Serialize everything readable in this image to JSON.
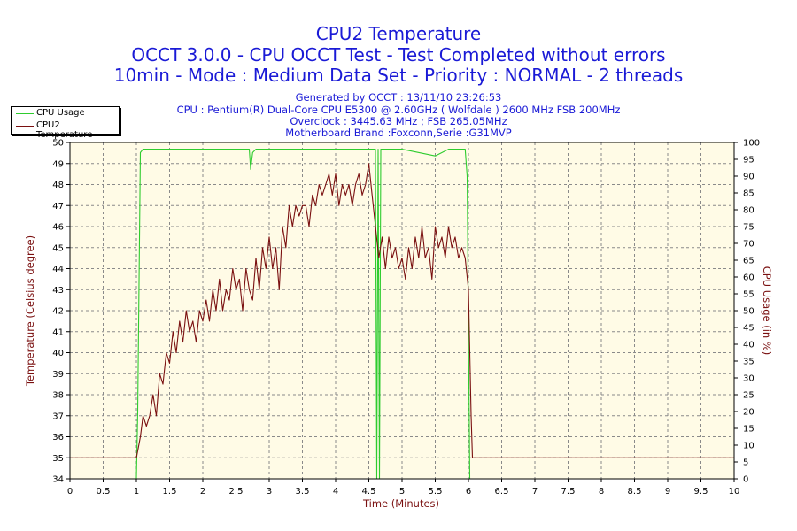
{
  "title": "CPU2 Temperature",
  "subtitle": "OCCT 3.0.0 - CPU OCCT Test - Test Completed without errors",
  "mode_line": "10min - Mode : Medium Data Set - Priority : NORMAL - 2 threads",
  "info": {
    "generated": "Generated by OCCT : 13/11/10 23:26:53",
    "cpu": "CPU : Pentium(R) Dual-Core CPU E5300 @ 2.60GHz ( Wolfdale ) 2600 MHz FSB 200MHz",
    "overclock": "Overclock : 3445.63 MHz ; FSB 265.05MHz",
    "motherboard": "Motherboard Brand :Foxconn,Serie :G31MVP"
  },
  "colors": {
    "title": "#1a1ad6",
    "cpu_usage": "#2ecc2e",
    "temperature": "#7a1010",
    "plot_bg": "#fffbe6",
    "axis_label": "#7a1010"
  },
  "chart_data": {
    "type": "line",
    "xlabel": "Time (Minutes)",
    "ylabel_left": "Temperature (Celsius degree)",
    "ylabel_right": "CPU Usage (in %)",
    "xlim": [
      0,
      10
    ],
    "ylim_left": [
      34,
      50
    ],
    "ylim_right": [
      0,
      100
    ],
    "x_ticks": [
      "0",
      "0.5",
      "1",
      "1.5",
      "2",
      "2.5",
      "3",
      "3.5",
      "4",
      "4.5",
      "5",
      "5.5",
      "6",
      "6.5",
      "7",
      "7.5",
      "8",
      "8.5",
      "9",
      "9.5",
      "10"
    ],
    "y_ticks_left": [
      "34",
      "35",
      "36",
      "37",
      "38",
      "39",
      "40",
      "41",
      "42",
      "43",
      "44",
      "45",
      "46",
      "47",
      "48",
      "49",
      "50"
    ],
    "y_ticks_right": [
      "0",
      "5",
      "10",
      "15",
      "20",
      "25",
      "30",
      "35",
      "40",
      "45",
      "50",
      "55",
      "60",
      "65",
      "70",
      "75",
      "80",
      "85",
      "90",
      "95",
      "100"
    ],
    "grid": true,
    "legend_position": "top-left",
    "series": [
      {
        "name": "CPU Usage",
        "axis": "right",
        "x": [
          0,
          1.0,
          1.02,
          1.06,
          1.1,
          1.3,
          1.6,
          2.0,
          2.4,
          2.7,
          2.72,
          2.75,
          2.8,
          3.2,
          3.6,
          4.0,
          4.4,
          4.6,
          4.62,
          4.64,
          4.66,
          4.68,
          4.7,
          4.72,
          5.0,
          5.5,
          5.7,
          5.95,
          5.98,
          6.02,
          6.05,
          10
        ],
        "y": [
          0,
          0,
          20,
          97,
          98,
          98,
          98,
          98,
          98,
          98,
          92,
          97,
          98,
          98,
          98,
          98,
          98,
          98,
          0,
          98,
          0,
          98,
          98,
          98,
          98,
          96,
          98,
          98,
          90,
          0,
          0,
          0
        ]
      },
      {
        "name": "CPU2 Temperature",
        "axis": "left",
        "x": [
          0,
          1.0,
          1.03,
          1.06,
          1.1,
          1.15,
          1.2,
          1.25,
          1.3,
          1.35,
          1.4,
          1.45,
          1.5,
          1.55,
          1.6,
          1.65,
          1.7,
          1.75,
          1.8,
          1.85,
          1.9,
          1.95,
          2.0,
          2.05,
          2.1,
          2.15,
          2.2,
          2.25,
          2.3,
          2.35,
          2.4,
          2.45,
          2.5,
          2.55,
          2.6,
          2.65,
          2.7,
          2.75,
          2.8,
          2.85,
          2.9,
          2.95,
          3.0,
          3.05,
          3.1,
          3.15,
          3.2,
          3.25,
          3.3,
          3.35,
          3.4,
          3.45,
          3.5,
          3.55,
          3.6,
          3.65,
          3.7,
          3.75,
          3.8,
          3.85,
          3.9,
          3.95,
          4.0,
          4.05,
          4.1,
          4.15,
          4.2,
          4.25,
          4.3,
          4.35,
          4.4,
          4.45,
          4.5,
          4.55,
          4.6,
          4.65,
          4.7,
          4.75,
          4.8,
          4.85,
          4.9,
          4.95,
          5.0,
          5.05,
          5.1,
          5.15,
          5.2,
          5.25,
          5.3,
          5.35,
          5.4,
          5.45,
          5.5,
          5.55,
          5.6,
          5.65,
          5.7,
          5.75,
          5.8,
          5.85,
          5.9,
          5.95,
          6.0,
          6.02,
          6.04,
          6.06,
          10
        ],
        "y": [
          35,
          35,
          35.5,
          36,
          37,
          36.5,
          37,
          38,
          37,
          39,
          38.5,
          40,
          39.5,
          41,
          40,
          41.5,
          40.5,
          42,
          41,
          41.5,
          40.5,
          42,
          41.5,
          42.5,
          41.5,
          43,
          42,
          43.5,
          42,
          43,
          42.5,
          44,
          43,
          43.5,
          42,
          44,
          43,
          42.5,
          44.5,
          43,
          45,
          44,
          45.5,
          44,
          45,
          43,
          46,
          45,
          47,
          46,
          47,
          46.5,
          47,
          47,
          46,
          47.5,
          47,
          48,
          47.5,
          48,
          48.5,
          47.5,
          48.5,
          47,
          48,
          47.5,
          48,
          47,
          48,
          48.5,
          47.5,
          48,
          49,
          47.5,
          46,
          44.5,
          45.5,
          44,
          45.5,
          44.5,
          45,
          44,
          44.5,
          43.5,
          45,
          44,
          45.5,
          44.5,
          46,
          44.5,
          45,
          43.5,
          46,
          45,
          45.5,
          44.5,
          46,
          45,
          45.5,
          44.5,
          45,
          44.5,
          43,
          40,
          37,
          35,
          35
        ]
      }
    ]
  }
}
